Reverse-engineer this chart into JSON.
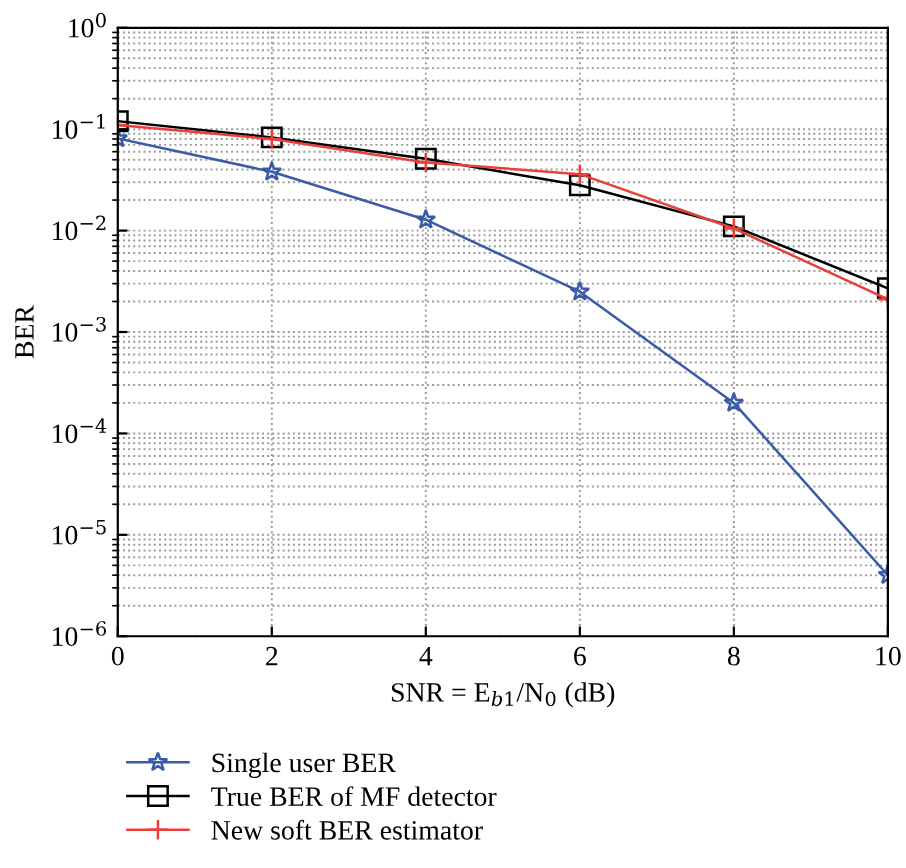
{
  "chart_data": {
    "type": "line",
    "xlabel": "SNR = E$_{b1}$/N$_{0}$ (dB)",
    "ylabel": "BER",
    "x": [
      0,
      2,
      4,
      6,
      8,
      10
    ],
    "log": "y",
    "grid": true,
    "legend": "bottom",
    "xlim": [
      0,
      10
    ],
    "xticks": [
      0,
      2,
      4,
      6,
      8,
      10
    ],
    "ylim": [
      1e-06,
      1
    ],
    "yticks": [
      {
        "value": 1e-06,
        "label": "10$^{−6}$"
      },
      {
        "value": 1e-05,
        "label": "10$^{−5}$"
      },
      {
        "value": 0.0001,
        "label": "10$^{−4}$"
      },
      {
        "value": 0.001,
        "label": "10$^{−3}$"
      },
      {
        "value": 0.01,
        "label": "10$^{−2}$"
      },
      {
        "value": 0.1,
        "label": "10$^{−1}$"
      },
      {
        "value": 1,
        "label": "10$^{0}$"
      }
    ],
    "series": [
      {
        "name": "Single user BER",
        "color": "#3a5ba8",
        "marker": "star",
        "values": [
          0.081,
          0.038,
          0.0128,
          0.0025,
          0.0002,
          4e-06
        ]
      },
      {
        "name": "True BER of MF detector",
        "color": "#000000",
        "marker": "square",
        "values": [
          0.12,
          0.083,
          0.051,
          0.028,
          0.011,
          0.0027
        ]
      },
      {
        "name": "New soft BER estimator",
        "color": "#e8413c",
        "marker": "cross",
        "values": [
          0.11,
          0.08,
          0.047,
          0.036,
          0.0105,
          0.0021
        ]
      }
    ]
  }
}
